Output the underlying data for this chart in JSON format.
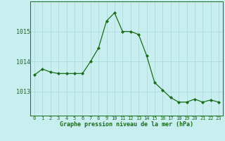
{
  "x": [
    0,
    1,
    2,
    3,
    4,
    5,
    6,
    7,
    8,
    9,
    10,
    11,
    12,
    13,
    14,
    15,
    16,
    17,
    18,
    19,
    20,
    21,
    22,
    23
  ],
  "y": [
    1013.55,
    1013.75,
    1013.65,
    1013.6,
    1013.6,
    1013.6,
    1013.6,
    1014.0,
    1014.45,
    1015.35,
    1015.62,
    1015.0,
    1015.0,
    1014.9,
    1014.2,
    1013.3,
    1013.05,
    1012.8,
    1012.65,
    1012.65,
    1012.75,
    1012.65,
    1012.72,
    1012.65
  ],
  "line_color": "#1a6b1a",
  "marker_color": "#1a6b1a",
  "bg_color": "#c8eef0",
  "grid_color": "#a8d8d8",
  "xlabel": "Graphe pression niveau de la mer (hPa)",
  "xlabel_color": "#1a6b1a",
  "tick_color": "#1a6b1a",
  "yticks": [
    1013,
    1014,
    1015
  ],
  "ylim": [
    1012.2,
    1016.0
  ],
  "xlim": [
    -0.5,
    23.5
  ],
  "xticks": [
    0,
    1,
    2,
    3,
    4,
    5,
    6,
    7,
    8,
    9,
    10,
    11,
    12,
    13,
    14,
    15,
    16,
    17,
    18,
    19,
    20,
    21,
    22,
    23
  ]
}
